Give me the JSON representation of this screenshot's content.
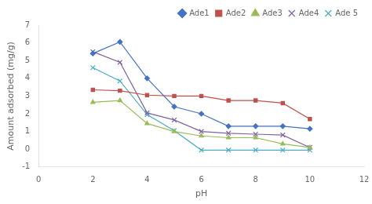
{
  "chart_data": {
    "type": "line",
    "xlabel": "pH",
    "ylabel": "Amount adsorbed (mg/g)",
    "xlim": [
      0,
      12
    ],
    "ylim": [
      -1,
      7
    ],
    "xticks": [
      0,
      2,
      4,
      6,
      8,
      10,
      12
    ],
    "yticks": [
      -1,
      0,
      1,
      2,
      3,
      4,
      5,
      6,
      7
    ],
    "x": [
      2,
      3,
      4,
      5,
      6,
      7,
      8,
      9,
      10
    ],
    "series": [
      {
        "name": "Ade1",
        "color": "#4472C4",
        "marker": "diamond",
        "values": [
          5.4,
          6.05,
          4.0,
          2.4,
          2.0,
          1.3,
          1.3,
          1.3,
          1.15
        ]
      },
      {
        "name": "Ade2",
        "color": "#C0504D",
        "marker": "square",
        "values": [
          3.35,
          3.3,
          3.05,
          3.0,
          3.0,
          2.75,
          2.75,
          2.6,
          1.7
        ]
      },
      {
        "name": "Ade3",
        "color": "#9BBB59",
        "marker": "triangle",
        "values": [
          2.65,
          2.75,
          1.45,
          1.0,
          0.75,
          0.65,
          0.65,
          0.3,
          0.1
        ]
      },
      {
        "name": "Ade4",
        "color": "#8064A2",
        "marker": "x",
        "values": [
          5.5,
          4.9,
          2.05,
          1.65,
          1.0,
          0.9,
          0.85,
          0.8,
          0.1
        ]
      },
      {
        "name": "Ade 5",
        "color": "#4BACC6",
        "marker": "x",
        "values": [
          4.6,
          3.85,
          1.95,
          1.05,
          -0.05,
          -0.05,
          -0.05,
          -0.05,
          -0.05
        ]
      }
    ],
    "grid": false,
    "legend": "upper right"
  }
}
